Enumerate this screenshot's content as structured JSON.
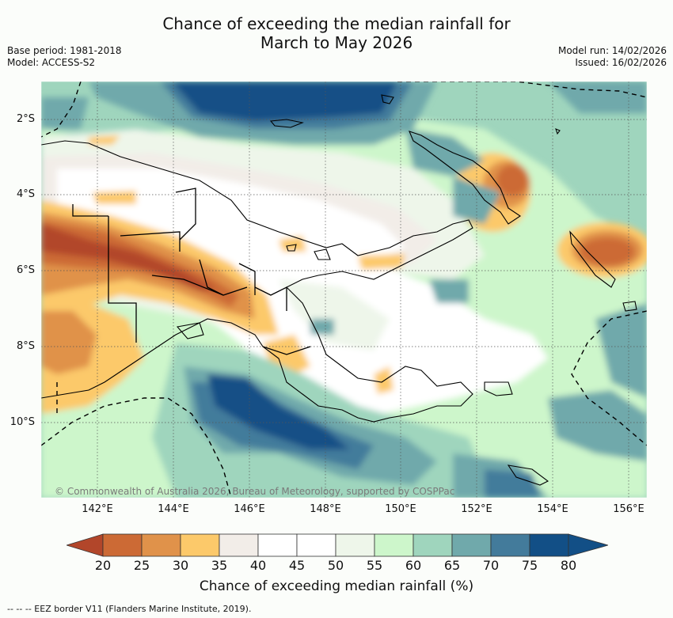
{
  "header": {
    "title_line1": "Chance of exceeding the median rainfall for",
    "title_line2": "March to May 2026",
    "base_period": "Base period: 1981-2018",
    "model": "Model: ACCESS-S2",
    "model_run": "Model run: 14/02/2026",
    "issued": "Issued: 16/02/2026"
  },
  "map": {
    "lat_labels": [
      "2°S",
      "4°S",
      "6°S",
      "8°S",
      "10°S"
    ],
    "lon_labels": [
      "142°E",
      "144°E",
      "146°E",
      "148°E",
      "150°E",
      "152°E",
      "154°E",
      "156°E"
    ],
    "copyright": "© Commonwealth of Australia 2026, Bureau of Meteorology, supported by COSPPac"
  },
  "colorbar": {
    "ticks": [
      "20",
      "25",
      "30",
      "35",
      "40",
      "45",
      "50",
      "55",
      "60",
      "65",
      "70",
      "75",
      "80"
    ],
    "colors": [
      "#b2462a",
      "#cc6a35",
      "#e0924a",
      "#fcc96a",
      "#f2ede8",
      "#ffffff",
      "#ffffff",
      "#eef6ea",
      "#cdf6cb",
      "#9fd5bd",
      "#70a9ab",
      "#437b9b",
      "#124f86"
    ],
    "label": "Chance of exceeding median rainfall (%)"
  },
  "footer": {
    "legend": "--  --  -- EEZ border V11 (Flanders Marine Institute, 2019)."
  }
}
